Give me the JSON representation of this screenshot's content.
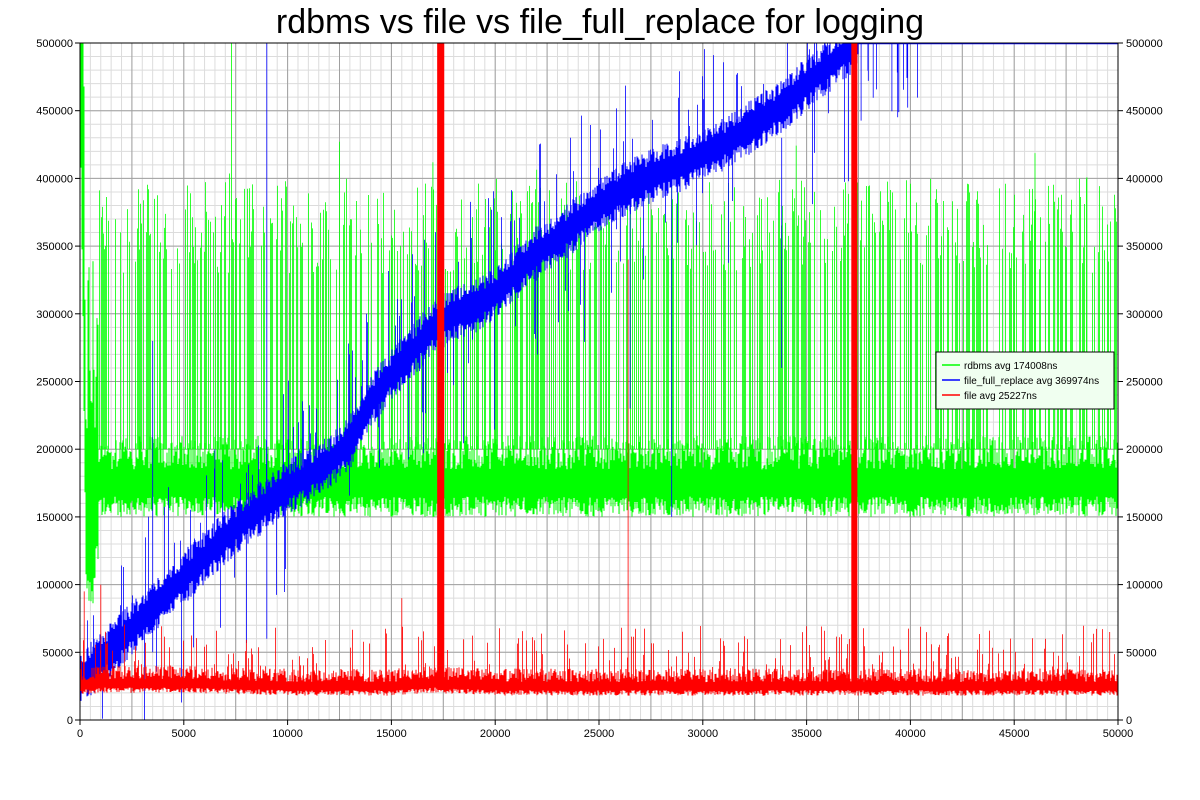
{
  "colors": {
    "rdbms": "#00ff00",
    "file_full_replace": "#0000ff",
    "file": "#ff0000",
    "grid_major": "#a0a0a0",
    "grid_minor": "#dcdcdc",
    "background": "#ffffff",
    "legend_bg": "#f0fff0"
  },
  "chart_data": {
    "type": "line",
    "title": "rdbms vs file vs file_full_replace for logging",
    "xlabel": "",
    "ylabel": "",
    "xlim": [
      0,
      50000
    ],
    "ylim": [
      0,
      500000
    ],
    "x_ticks": [
      0,
      5000,
      10000,
      15000,
      20000,
      25000,
      30000,
      35000,
      40000,
      45000,
      50000
    ],
    "y_ticks": [
      0,
      50000,
      100000,
      150000,
      200000,
      250000,
      300000,
      350000,
      400000,
      450000,
      500000
    ],
    "right_axis": true,
    "grid": true,
    "legend_position": "right",
    "series": [
      {
        "name": "rdbms avg 174008ns",
        "key": "rdbms",
        "base_band": [
          160000,
          195000
        ],
        "spike_range": [
          330000,
          400000
        ],
        "envelope": [
          [
            0,
            500000
          ],
          [
            300,
            130000
          ],
          [
            600,
            120000
          ],
          [
            800,
            155000
          ],
          [
            1000,
            165000
          ],
          [
            5000,
            170000
          ],
          [
            10000,
            172000
          ],
          [
            15000,
            175000
          ],
          [
            20000,
            176000
          ],
          [
            25000,
            175000
          ],
          [
            30000,
            174000
          ],
          [
            35000,
            173000
          ],
          [
            40000,
            172000
          ],
          [
            45000,
            171000
          ],
          [
            50000,
            172000
          ]
        ]
      },
      {
        "name": "file_full_replace avg 369974ns",
        "key": "file_full_replace",
        "trend": [
          [
            0,
            30000
          ],
          [
            1000,
            45000
          ],
          [
            2000,
            60000
          ],
          [
            3000,
            75000
          ],
          [
            4000,
            90000
          ],
          [
            5000,
            105000
          ],
          [
            6000,
            120000
          ],
          [
            7000,
            135000
          ],
          [
            8000,
            148000
          ],
          [
            9000,
            160000
          ],
          [
            10000,
            172000
          ],
          [
            11000,
            180000
          ],
          [
            12000,
            190000
          ],
          [
            13000,
            205000
          ],
          [
            14000,
            235000
          ],
          [
            15000,
            255000
          ],
          [
            16000,
            272000
          ],
          [
            17000,
            290000
          ],
          [
            18000,
            300000
          ],
          [
            19000,
            305000
          ],
          [
            20000,
            315000
          ],
          [
            21000,
            330000
          ],
          [
            22000,
            345000
          ],
          [
            23000,
            355000
          ],
          [
            24000,
            368000
          ],
          [
            25000,
            380000
          ],
          [
            26000,
            390000
          ],
          [
            27000,
            398000
          ],
          [
            28000,
            405000
          ],
          [
            29000,
            410000
          ],
          [
            30000,
            418000
          ],
          [
            31000,
            425000
          ],
          [
            32000,
            435000
          ],
          [
            33000,
            445000
          ],
          [
            34000,
            455000
          ],
          [
            35000,
            470000
          ],
          [
            36000,
            482000
          ],
          [
            37000,
            495000
          ],
          [
            37500,
            500000
          ],
          [
            50000,
            500000
          ]
        ]
      },
      {
        "name": "file avg 25227ns",
        "key": "file",
        "trend": [
          [
            0,
            25000
          ],
          [
            1000,
            27000
          ],
          [
            5000,
            27000
          ],
          [
            10000,
            25000
          ],
          [
            15000,
            25000
          ],
          [
            17000,
            27000
          ],
          [
            20000,
            25000
          ],
          [
            25000,
            25000
          ],
          [
            30000,
            25000
          ],
          [
            35000,
            25000
          ],
          [
            40000,
            25000
          ],
          [
            45000,
            25000
          ],
          [
            50000,
            25000
          ]
        ],
        "full_spikes_x": [
          17300,
          17450,
          37250,
          37350
        ]
      }
    ]
  }
}
